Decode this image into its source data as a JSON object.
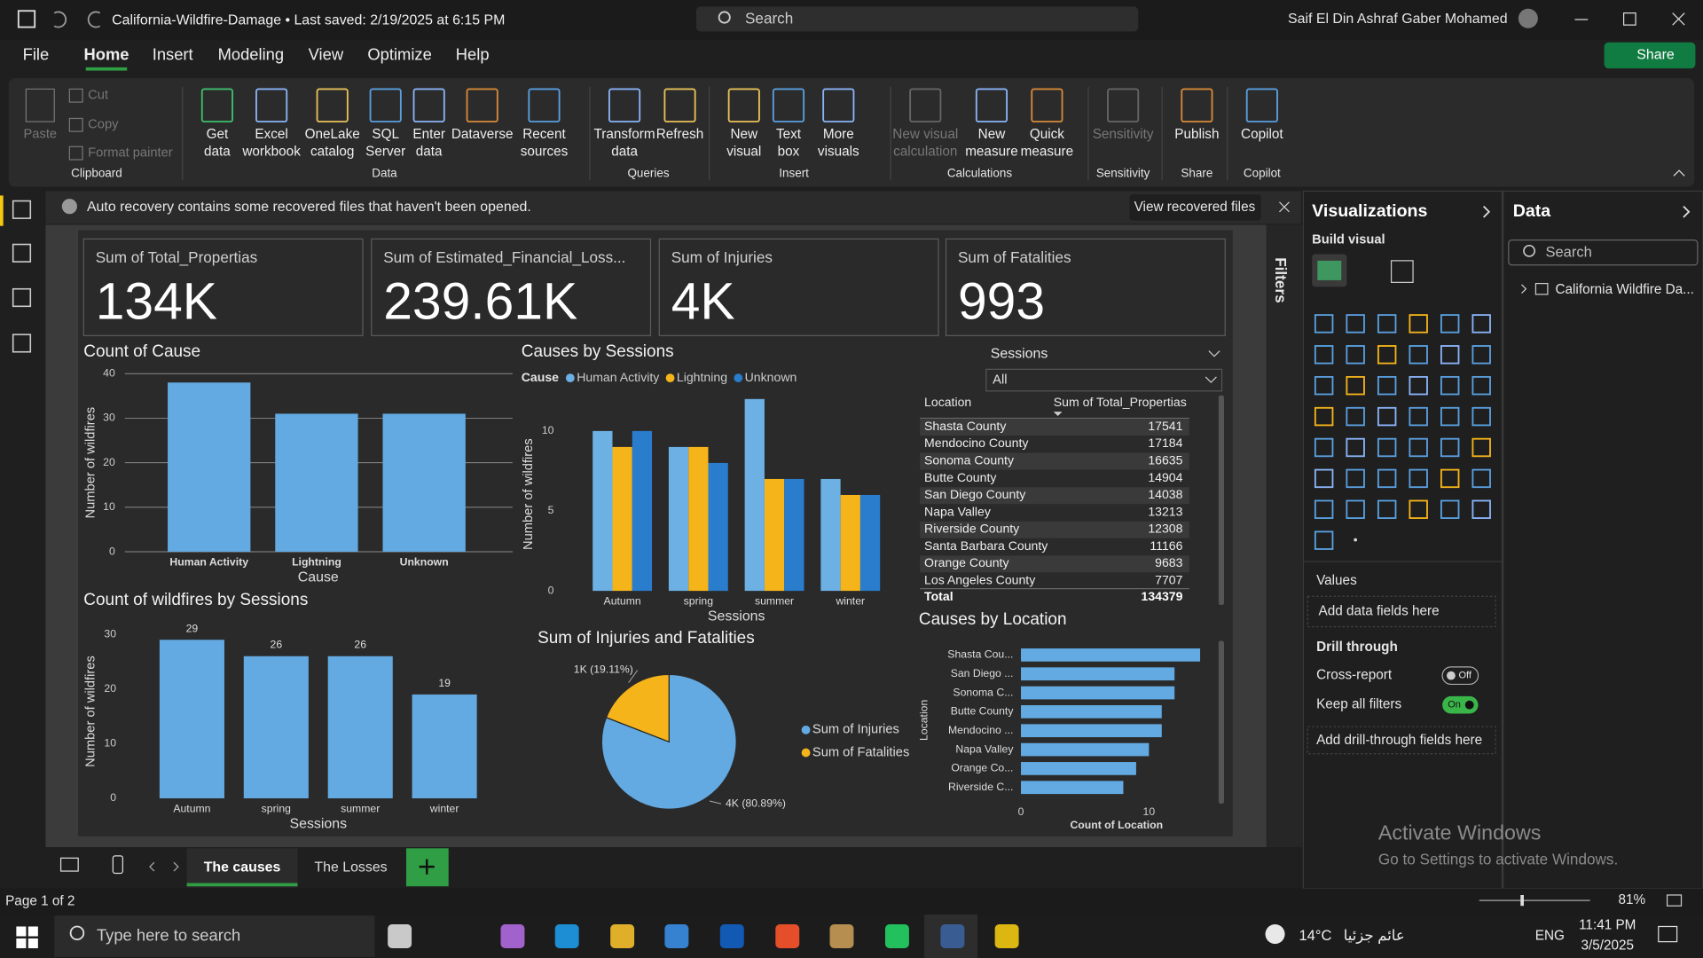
{
  "window": {
    "title": "California-Wildfire-Damage • Last saved: 2/19/2025 at 6:15 PM",
    "search": "Search",
    "user": "Saif El Din Ashraf Gaber Mohamed"
  },
  "menu": [
    "File",
    "Home",
    "Insert",
    "Modeling",
    "View",
    "Optimize",
    "Help"
  ],
  "share": "Share",
  "ribbon": {
    "groups": [
      {
        "label": "Clipboard",
        "buttons": [
          {
            "lines": [
              "Paste"
            ]
          },
          {
            "lines": [
              "Cut"
            ]
          },
          {
            "lines": [
              "Copy"
            ]
          },
          {
            "lines": [
              "Format painter"
            ]
          }
        ]
      },
      {
        "label": "Data",
        "buttons": [
          {
            "lines": [
              "Get",
              "data"
            ]
          },
          {
            "lines": [
              "Excel",
              "workbook"
            ]
          },
          {
            "lines": [
              "OneLake",
              "catalog"
            ]
          },
          {
            "lines": [
              "SQL",
              "Server"
            ]
          },
          {
            "lines": [
              "Enter",
              "data"
            ]
          },
          {
            "lines": [
              "Dataverse"
            ]
          },
          {
            "lines": [
              "Recent",
              "sources"
            ]
          }
        ]
      },
      {
        "label": "Queries",
        "buttons": [
          {
            "lines": [
              "Transform",
              "data"
            ]
          },
          {
            "lines": [
              "Refresh"
            ]
          }
        ]
      },
      {
        "label": "Insert",
        "buttons": [
          {
            "lines": [
              "New",
              "visual"
            ]
          },
          {
            "lines": [
              "Text",
              "box"
            ]
          },
          {
            "lines": [
              "More",
              "visuals"
            ]
          }
        ]
      },
      {
        "label": "Calculations",
        "buttons": [
          {
            "lines": [
              "New visual",
              "calculation"
            ]
          },
          {
            "lines": [
              "New",
              "measure"
            ]
          },
          {
            "lines": [
              "Quick",
              "measure"
            ]
          }
        ]
      },
      {
        "label": "Sensitivity",
        "buttons": [
          {
            "lines": [
              "Sensitivity"
            ]
          }
        ]
      },
      {
        "label": "Share",
        "buttons": [
          {
            "lines": [
              "Publish"
            ]
          }
        ]
      },
      {
        "label": "Copilot",
        "buttons": [
          {
            "lines": [
              "Copilot"
            ]
          }
        ]
      }
    ]
  },
  "notification": {
    "text": "Auto recovery contains some recovered files that haven't been opened.",
    "button": "View recovered files"
  },
  "kpis": [
    {
      "label": "Sum of Total_Propertias",
      "value": "134K"
    },
    {
      "label": "Sum of Estimated_Financial_Loss...",
      "value": "239.61K"
    },
    {
      "label": "Sum of Injuries",
      "value": "4K"
    },
    {
      "label": "Sum of Fatalities",
      "value": "993"
    }
  ],
  "chart_data": [
    {
      "type": "bar",
      "title": "Count of Cause",
      "categories": [
        "Human Activity",
        "Lightning",
        "Unknown"
      ],
      "values": [
        38,
        31,
        31
      ],
      "color": "#63aae2",
      "ylim": [
        0,
        40
      ],
      "yticks": [
        0,
        10,
        20,
        30,
        40
      ],
      "grid": true,
      "xlabel": "Cause",
      "ylabel": "Number of wildfires"
    },
    {
      "type": "bar",
      "title": "Causes by Sessions",
      "legend_title": "Cause",
      "categories": [
        "Autumn",
        "spring",
        "summer",
        "winter"
      ],
      "series": [
        {
          "name": "Human Activity",
          "color": "#6cb0e4",
          "values": [
            10,
            9,
            12,
            7
          ]
        },
        {
          "name": "Lightning",
          "color": "#f5b41a",
          "values": [
            9,
            9,
            7,
            6
          ]
        },
        {
          "name": "Unknown",
          "color": "#2a7ccc",
          "values": [
            10,
            8,
            7,
            6
          ]
        }
      ],
      "ylim": [
        0,
        12.5
      ],
      "yticks": [
        0,
        5,
        10
      ],
      "grid": false,
      "xlabel": "Sessions",
      "ylabel": "Number of wildfires"
    },
    {
      "type": "bar",
      "title": "Count of wildfires by Sessions",
      "categories": [
        "Autumn",
        "spring",
        "summer",
        "winter"
      ],
      "values": [
        29,
        26,
        26,
        19
      ],
      "color": "#63aae2",
      "ylim": [
        0,
        30
      ],
      "yticks": [
        0,
        10,
        20,
        30
      ],
      "grid": false,
      "data_labels": true,
      "xlabel": "Sessions",
      "ylabel": "Number of wildfires"
    },
    {
      "type": "pie",
      "title": "Sum of Injuries and Fatalities",
      "categories": [
        "Sum of Injuries",
        "Sum of Fatalities"
      ],
      "values": [
        80.89,
        19.11
      ],
      "value_labels": [
        "4K (80.89%)",
        "1K (19.11%)"
      ],
      "colors": [
        "#63aae2",
        "#f5b41a"
      ]
    },
    {
      "type": "barh",
      "title": "Causes by Location",
      "categories": [
        "Shasta Cou...",
        "San Diego ...",
        "Sonoma C...",
        "Butte County",
        "Mendocino ...",
        "Napa Valley",
        "Orange Co...",
        "Riverside C..."
      ],
      "values": [
        14,
        12,
        12,
        11,
        11,
        10,
        9,
        8
      ],
      "color": "#63aae2",
      "xlim": [
        0,
        14
      ],
      "xticks": [
        0,
        10
      ],
      "xlabel": "Count of Location",
      "ylabel": "Location"
    }
  ],
  "table": {
    "columns": [
      "Location",
      "Sum of Total_Propertias"
    ],
    "rows": [
      [
        "Shasta County",
        17541
      ],
      [
        "Mendocino County",
        17184
      ],
      [
        "Sonoma County",
        16635
      ],
      [
        "Butte County",
        14904
      ],
      [
        "San Diego County",
        14038
      ],
      [
        "Napa Valley",
        13213
      ],
      [
        "Riverside County",
        12308
      ],
      [
        "Santa Barbara County",
        11166
      ],
      [
        "Orange County",
        9683
      ],
      [
        "Los Angeles County",
        7707
      ]
    ],
    "total": [
      "Total",
      134379
    ]
  },
  "slicer": {
    "title": "Sessions",
    "value": "All"
  },
  "filters": "Filters",
  "visualizations": {
    "title": "Visualizations",
    "build": "Build visual",
    "values": "Values",
    "values_placeholder": "Add data fields here",
    "drill": "Drill through",
    "cross": "Cross-report",
    "cross_state": "Off",
    "keep": "Keep all filters",
    "keep_state": "On",
    "drill_placeholder": "Add drill-through fields here"
  },
  "data_pane": {
    "title": "Data",
    "search": "Search",
    "item": "California Wildfire Da..."
  },
  "pages": [
    "The causes",
    "The Losses"
  ],
  "status": {
    "page": "Page 1 of 2",
    "zoom": "81%"
  },
  "watermark": [
    "Activate Windows",
    "Go to Settings to activate Windows."
  ],
  "taskbar": {
    "search": "Type here to search",
    "temp": "14°C",
    "weather": "عائم جزئيا",
    "lang": "ENG",
    "time": "11:41 PM",
    "date": "3/5/2025"
  }
}
